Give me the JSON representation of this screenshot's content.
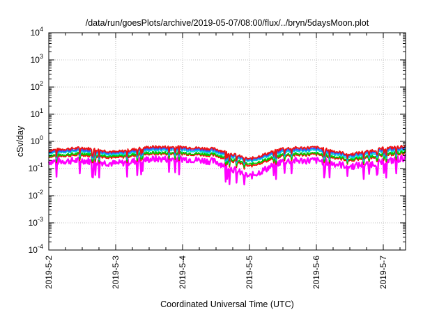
{
  "chart_data": {
    "type": "line",
    "title": "/data/run/goesPlots/archive/2019-05-07/08:00/flux/../bryn/5daysMoon.plot",
    "xlabel": "Coordinated Universal Time (UTC)",
    "ylabel": "cSv/day",
    "yscale": "log",
    "ylim": [
      0.0001,
      10000
    ],
    "xlim": [
      "2019-05-02 00:00",
      "2019-05-07 08:00"
    ],
    "grid": true,
    "x_tick_labels": [
      "2019-5-2",
      "2019-5-3",
      "2019-5-4",
      "2019-5-5",
      "2019-5-6",
      "2019-5-7"
    ],
    "y_ticks": [
      {
        "value": 0.0001,
        "base": "10",
        "exp": "-4"
      },
      {
        "value": 0.001,
        "base": "10",
        "exp": "-3"
      },
      {
        "value": 0.01,
        "base": "10",
        "exp": "-2"
      },
      {
        "value": 0.1,
        "base": "10",
        "exp": "-1"
      },
      {
        "value": 1,
        "base": "10",
        "exp": "0"
      },
      {
        "value": 10,
        "base": "10",
        "exp": "1"
      },
      {
        "value": 100,
        "base": "10",
        "exp": "2"
      },
      {
        "value": 1000,
        "base": "10",
        "exp": "3"
      },
      {
        "value": 10000,
        "base": "10",
        "exp": "4"
      }
    ],
    "x": [
      "2019-05-02",
      "2019-05-02 12:00",
      "2019-05-03",
      "2019-05-03 12:00",
      "2019-05-04",
      "2019-05-04 12:00",
      "2019-05-05",
      "2019-05-05 12:00",
      "2019-05-06",
      "2019-05-06 12:00",
      "2019-05-07",
      "2019-05-07 08:00"
    ],
    "series": [
      {
        "color": "#ff00ff",
        "values": [
          0.18,
          0.2,
          0.15,
          0.22,
          0.23,
          0.18,
          0.05,
          0.19,
          0.2,
          0.12,
          0.17,
          0.25
        ]
      },
      {
        "color": "#ff0000",
        "values": [
          0.28,
          0.32,
          0.25,
          0.35,
          0.35,
          0.3,
          0.12,
          0.3,
          0.33,
          0.2,
          0.3,
          0.38
        ]
      },
      {
        "color": "#00cc00",
        "values": [
          0.3,
          0.36,
          0.28,
          0.38,
          0.38,
          0.33,
          0.14,
          0.33,
          0.36,
          0.22,
          0.33,
          0.42
        ]
      },
      {
        "color": "#00dddd",
        "values": [
          0.38,
          0.45,
          0.32,
          0.48,
          0.48,
          0.4,
          0.18,
          0.42,
          0.46,
          0.26,
          0.42,
          0.52
        ]
      },
      {
        "color": "#3355ff",
        "values": [
          0.42,
          0.5,
          0.36,
          0.55,
          0.55,
          0.46,
          0.2,
          0.48,
          0.52,
          0.3,
          0.48,
          0.58
        ]
      },
      {
        "color": "#ee1111",
        "values": [
          0.47,
          0.58,
          0.4,
          0.62,
          0.62,
          0.52,
          0.22,
          0.55,
          0.6,
          0.33,
          0.55,
          0.65
        ]
      }
    ]
  }
}
